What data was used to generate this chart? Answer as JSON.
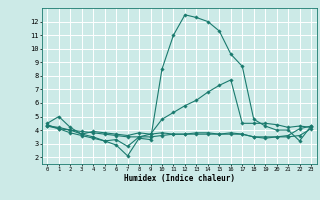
{
  "title": "",
  "xlabel": "Humidex (Indice chaleur)",
  "ylabel": "",
  "xlim": [
    -0.5,
    23.5
  ],
  "ylim": [
    1.5,
    13.0
  ],
  "yticks": [
    2,
    3,
    4,
    5,
    6,
    7,
    8,
    9,
    10,
    11,
    12
  ],
  "xticks": [
    0,
    1,
    2,
    3,
    4,
    5,
    6,
    7,
    8,
    9,
    10,
    11,
    12,
    13,
    14,
    15,
    16,
    17,
    18,
    19,
    20,
    21,
    22,
    23
  ],
  "bg_color": "#cceae7",
  "grid_color": "#ffffff",
  "line_color": "#1a7a6e",
  "lines": [
    [
      4.5,
      5.0,
      4.2,
      3.7,
      3.5,
      3.2,
      2.9,
      2.1,
      3.4,
      3.3,
      8.5,
      11.0,
      12.5,
      12.3,
      12.0,
      11.3,
      9.6,
      8.7,
      4.8,
      4.3,
      4.0,
      4.0,
      3.2,
      4.3
    ],
    [
      4.4,
      4.1,
      3.8,
      3.6,
      3.4,
      3.2,
      3.3,
      2.8,
      3.5,
      3.7,
      4.8,
      5.3,
      5.8,
      6.2,
      6.8,
      7.3,
      7.7,
      4.5,
      4.5,
      4.5,
      4.4,
      4.2,
      4.3,
      4.2
    ],
    [
      4.3,
      4.1,
      4.0,
      3.7,
      3.9,
      3.8,
      3.7,
      3.6,
      3.8,
      3.7,
      3.8,
      3.7,
      3.7,
      3.8,
      3.8,
      3.7,
      3.8,
      3.7,
      3.5,
      3.5,
      3.5,
      3.5,
      3.6,
      4.1
    ],
    [
      4.3,
      4.2,
      4.0,
      3.9,
      3.8,
      3.7,
      3.6,
      3.5,
      3.5,
      3.5,
      3.6,
      3.7,
      3.7,
      3.7,
      3.7,
      3.7,
      3.7,
      3.7,
      3.5,
      3.4,
      3.5,
      3.6,
      4.1,
      4.3
    ]
  ]
}
